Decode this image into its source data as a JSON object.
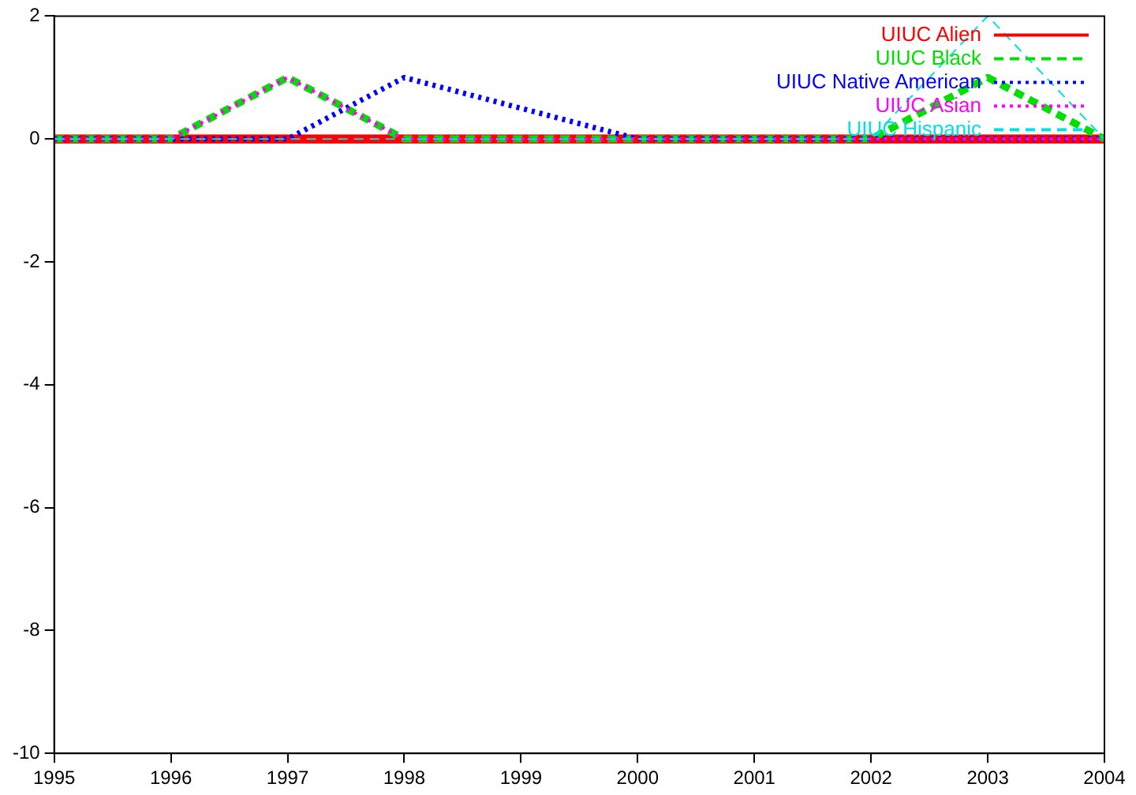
{
  "chart_data": {
    "type": "line",
    "x": [
      1995,
      1996,
      1997,
      1998,
      1999,
      2000,
      2001,
      2002,
      2003,
      2004
    ],
    "series": [
      {
        "name": "UIUC Alien",
        "color": "#ff0000",
        "line_style": "solid",
        "values": [
          0,
          0,
          0,
          0,
          0,
          0,
          0,
          0,
          0,
          0
        ]
      },
      {
        "name": "UIUC Black",
        "color": "#00e000",
        "line_style": "dashed",
        "values": [
          0,
          0,
          1,
          0,
          0,
          0,
          0,
          0,
          1,
          0
        ]
      },
      {
        "name": "UIUC Native American",
        "color": "#0000ff",
        "line_style": "dotted",
        "x": [
          1995,
          1996,
          1997,
          1998,
          2000,
          2001,
          2002,
          2003,
          2004
        ],
        "values": [
          0,
          0,
          0,
          1,
          0,
          0,
          0,
          0,
          0
        ]
      },
      {
        "name": "UIUC Asian",
        "color": "#ff00ff",
        "line_style": "dotted",
        "values": [
          0,
          0,
          1,
          0,
          0,
          0,
          0,
          0,
          0,
          0
        ]
      },
      {
        "name": "UIUC Hispanic",
        "color": "#00e0e0",
        "line_style": "dashed",
        "values": [
          0,
          0,
          0,
          0,
          0,
          0,
          0,
          0,
          2,
          0
        ]
      }
    ],
    "xlim": [
      1995,
      2004
    ],
    "xticks": [
      1995,
      1996,
      1997,
      1998,
      1999,
      2000,
      2001,
      2002,
      2003,
      2004
    ],
    "ylim": [
      -10,
      2
    ],
    "yticks": [
      -10,
      -8,
      -6,
      -4,
      -2,
      0,
      2
    ],
    "grid": false,
    "legend": "top right",
    "marker": "none"
  }
}
